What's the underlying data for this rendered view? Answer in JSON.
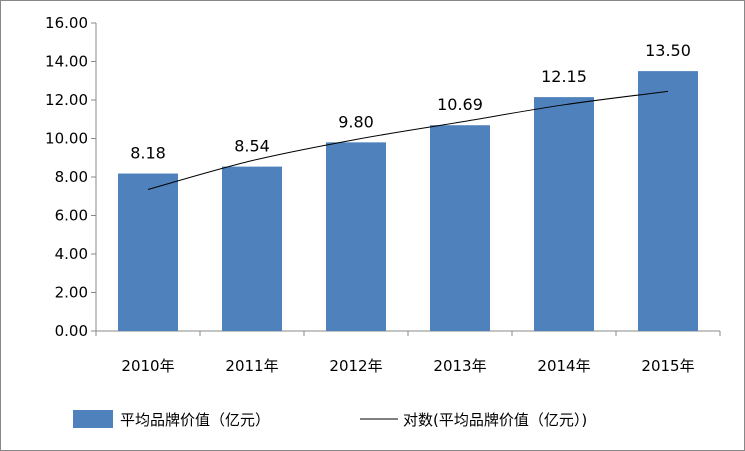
{
  "chart_data": {
    "type": "bar",
    "categories": [
      "2010年",
      "2011年",
      "2012年",
      "2013年",
      "2014年",
      "2015年"
    ],
    "series": [
      {
        "name": "平均品牌价值（亿元）",
        "values": [
          8.18,
          8.54,
          9.8,
          10.69,
          12.15,
          13.5
        ],
        "labels": [
          "8.18",
          "8.54",
          "9.80",
          "10.69",
          "12.15",
          "13.50"
        ],
        "color": "#4F81BD"
      }
    ],
    "trendline": {
      "name": "对数(平均品牌价值（亿元）)",
      "type": "logarithmic",
      "values": [
        7.35,
        8.85,
        9.95,
        10.85,
        11.75,
        12.45
      ],
      "color": "#000000"
    },
    "yticks": [
      "0.00",
      "2.00",
      "4.00",
      "6.00",
      "8.00",
      "10.00",
      "12.00",
      "14.00",
      "16.00"
    ],
    "ylim": [
      0,
      16
    ],
    "grid": false,
    "legend_position": "bottom"
  }
}
